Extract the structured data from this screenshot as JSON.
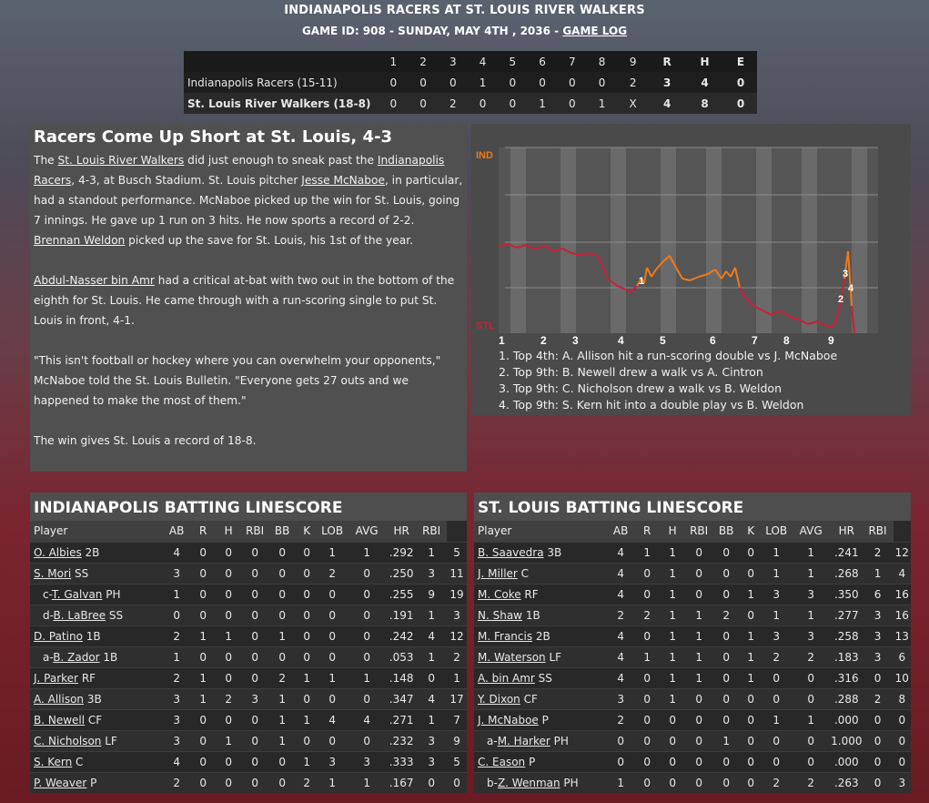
{
  "header": {
    "title": "INDIANAPOLIS RACERS AT ST. LOUIS RIVER WALKERS",
    "subtitle_prefix": "GAME ID: 908 - SUNDAY, MAY 4TH , 2036 - ",
    "game_log_link": "GAME LOG"
  },
  "linescore": {
    "columns": [
      "1",
      "2",
      "3",
      "4",
      "5",
      "6",
      "7",
      "8",
      "9",
      "R",
      "H",
      "E"
    ],
    "rows": [
      {
        "team": "Indianapolis Racers (15-11)",
        "innings": [
          "0",
          "0",
          "0",
          "1",
          "0",
          "0",
          "0",
          "0",
          "2"
        ],
        "r": "3",
        "h": "4",
        "e": "0"
      },
      {
        "team": "St. Louis River Walkers (18-8)",
        "innings": [
          "0",
          "0",
          "2",
          "0",
          "0",
          "1",
          "0",
          "1",
          "X"
        ],
        "r": "4",
        "h": "8",
        "e": "0"
      }
    ]
  },
  "story": {
    "headline": "Racers Come Up Short at St. Louis, 4-3",
    "p1": {
      "t1": "The ",
      "l1": "St. Louis River Walkers",
      "t2": " did just enough to sneak past the ",
      "l2": "Indianapolis Racers",
      "t3": ", 4-3, at Busch Stadium. St. Louis pitcher ",
      "l3": "Jesse McNaboe",
      "t4": ", in particular, had a standout performance. McNaboe picked up the win for St. Louis, going 7 innings. He gave up 1 run on 3 hits. He now sports a record of 2-2. ",
      "l4": "Brennan Weldon",
      "t5": " picked up the save for St. Louis, his 1st of the year."
    },
    "p2": {
      "l1": "Abdul-Nasser bin Amr",
      "t1": " had a critical at-bat with two out in the bottom of the eighth for St. Louis. He came through with a run-scoring single to put St. Louis in front, 4-1."
    },
    "p3": "\"This isn't football or hockey where you can overwhelm your opponents,\" McNaboe told the St. Louis Bulletin. \"Everyone gets 27 outs and we happened to make the most of them.\"",
    "p4": "The win gives St. Louis a record of 18-8."
  },
  "win_probability": {
    "top_label": "IND",
    "bottom_label": "STL",
    "innings": [
      "1",
      "2",
      "3",
      "4",
      "5",
      "6",
      "7",
      "8",
      "9"
    ],
    "markers": [
      "1",
      "2",
      "3",
      "4"
    ],
    "notes": [
      "1. Top 4th: A. Allison hit a run-scoring double vs J. McNaboe",
      "2. Top 9th: B. Newell drew a walk vs A. Cintron",
      "3. Top 9th: C. Nicholson drew a walk vs B. Weldon",
      "4. Top 9th: S. Kern hit into a double play vs B. Weldon"
    ],
    "colors": {
      "ind": "#f07a1a",
      "stl": "#c8203a",
      "stripe": "#6a6a6a"
    }
  },
  "batting_headers": [
    "Player",
    "AB",
    "R",
    "H",
    "RBI",
    "BB",
    "K",
    "LOB",
    "AVG",
    "HR",
    "RBI"
  ],
  "ind_batting": {
    "title": "INDIANAPOLIS BATTING LINESCORE",
    "rows": [
      {
        "prefix": "",
        "name": "O. Albies",
        "pos": " 2B",
        "stats": [
          "4",
          "0",
          "0",
          "0",
          "0",
          "0",
          "1",
          "1",
          ".292",
          "1",
          "5"
        ]
      },
      {
        "prefix": "",
        "name": "S. Mori",
        "pos": " SS",
        "stats": [
          "3",
          "0",
          "0",
          "0",
          "0",
          "0",
          "2",
          "0",
          ".250",
          "3",
          "11"
        ]
      },
      {
        "prefix": "c-",
        "name": "T. Galvan",
        "pos": " PH",
        "stats": [
          "1",
          "0",
          "0",
          "0",
          "0",
          "0",
          "0",
          "0",
          ".255",
          "9",
          "19"
        ]
      },
      {
        "prefix": "d-",
        "name": "B. LaBree",
        "pos": " SS",
        "stats": [
          "0",
          "0",
          "0",
          "0",
          "0",
          "0",
          "0",
          "0",
          ".191",
          "1",
          "3"
        ]
      },
      {
        "prefix": "",
        "name": "D. Patino",
        "pos": " 1B",
        "stats": [
          "2",
          "1",
          "1",
          "0",
          "1",
          "0",
          "0",
          "0",
          ".242",
          "4",
          "12"
        ]
      },
      {
        "prefix": "a-",
        "name": "B. Zador",
        "pos": " 1B",
        "stats": [
          "1",
          "0",
          "0",
          "0",
          "0",
          "0",
          "0",
          "0",
          ".053",
          "1",
          "2"
        ]
      },
      {
        "prefix": "",
        "name": "J. Parker",
        "pos": " RF",
        "stats": [
          "2",
          "1",
          "0",
          "0",
          "2",
          "1",
          "1",
          "1",
          ".148",
          "0",
          "1"
        ]
      },
      {
        "prefix": "",
        "name": "A. Allison",
        "pos": " 3B",
        "stats": [
          "3",
          "1",
          "2",
          "3",
          "1",
          "0",
          "0",
          "0",
          ".347",
          "4",
          "17"
        ]
      },
      {
        "prefix": "",
        "name": "B. Newell",
        "pos": " CF",
        "stats": [
          "3",
          "0",
          "0",
          "0",
          "1",
          "1",
          "4",
          "4",
          ".271",
          "1",
          "7"
        ]
      },
      {
        "prefix": "",
        "name": "C. Nicholson",
        "pos": " LF",
        "stats": [
          "3",
          "0",
          "1",
          "0",
          "1",
          "0",
          "0",
          "0",
          ".232",
          "3",
          "9"
        ]
      },
      {
        "prefix": "",
        "name": "S. Kern",
        "pos": " C",
        "stats": [
          "4",
          "0",
          "0",
          "0",
          "0",
          "1",
          "3",
          "3",
          ".333",
          "3",
          "5"
        ]
      },
      {
        "prefix": "",
        "name": "P. Weaver",
        "pos": " P",
        "stats": [
          "2",
          "0",
          "0",
          "0",
          "0",
          "2",
          "1",
          "1",
          ".167",
          "0",
          "0"
        ]
      }
    ]
  },
  "stl_batting": {
    "title": "ST. LOUIS BATTING LINESCORE",
    "rows": [
      {
        "prefix": "",
        "name": "B. Saavedra",
        "pos": " 3B",
        "stats": [
          "4",
          "1",
          "1",
          "0",
          "0",
          "0",
          "1",
          "1",
          ".241",
          "2",
          "12"
        ]
      },
      {
        "prefix": "",
        "name": "J. Miller",
        "pos": " C",
        "stats": [
          "4",
          "0",
          "1",
          "0",
          "0",
          "0",
          "1",
          "1",
          ".268",
          "1",
          "4"
        ]
      },
      {
        "prefix": "",
        "name": "M. Coke",
        "pos": " RF",
        "stats": [
          "4",
          "0",
          "1",
          "0",
          "0",
          "1",
          "3",
          "3",
          ".350",
          "6",
          "16"
        ]
      },
      {
        "prefix": "",
        "name": "N. Shaw",
        "pos": " 1B",
        "stats": [
          "2",
          "2",
          "1",
          "1",
          "2",
          "0",
          "1",
          "1",
          ".277",
          "3",
          "16"
        ]
      },
      {
        "prefix": "",
        "name": "M. Francis",
        "pos": " 2B",
        "stats": [
          "4",
          "0",
          "1",
          "1",
          "0",
          "1",
          "3",
          "3",
          ".258",
          "3",
          "13"
        ]
      },
      {
        "prefix": "",
        "name": "M. Waterson",
        "pos": " LF",
        "stats": [
          "4",
          "1",
          "1",
          "1",
          "0",
          "1",
          "2",
          "2",
          ".183",
          "3",
          "6"
        ]
      },
      {
        "prefix": "",
        "name": "A. bin Amr",
        "pos": " SS",
        "stats": [
          "4",
          "0",
          "1",
          "1",
          "0",
          "1",
          "0",
          "0",
          ".316",
          "0",
          "10"
        ]
      },
      {
        "prefix": "",
        "name": "Y. Dixon",
        "pos": " CF",
        "stats": [
          "3",
          "0",
          "1",
          "0",
          "0",
          "0",
          "0",
          "0",
          ".288",
          "2",
          "8"
        ]
      },
      {
        "prefix": "",
        "name": "J. McNaboe",
        "pos": " P",
        "stats": [
          "2",
          "0",
          "0",
          "0",
          "0",
          "0",
          "1",
          "1",
          ".000",
          "0",
          "0"
        ]
      },
      {
        "prefix": "a-",
        "name": "M. Harker",
        "pos": " PH",
        "stats": [
          "0",
          "0",
          "0",
          "0",
          "1",
          "0",
          "0",
          "0",
          "1.000",
          "0",
          "0"
        ]
      },
      {
        "prefix": "",
        "name": "C. Eason",
        "pos": " P",
        "stats": [
          "0",
          "0",
          "0",
          "0",
          "0",
          "0",
          "0",
          "0",
          ".000",
          "0",
          "0"
        ]
      },
      {
        "prefix": "b-",
        "name": "Z. Wenman",
        "pos": " PH",
        "stats": [
          "1",
          "0",
          "0",
          "0",
          "0",
          "0",
          "2",
          "2",
          ".263",
          "0",
          "3"
        ]
      }
    ]
  }
}
